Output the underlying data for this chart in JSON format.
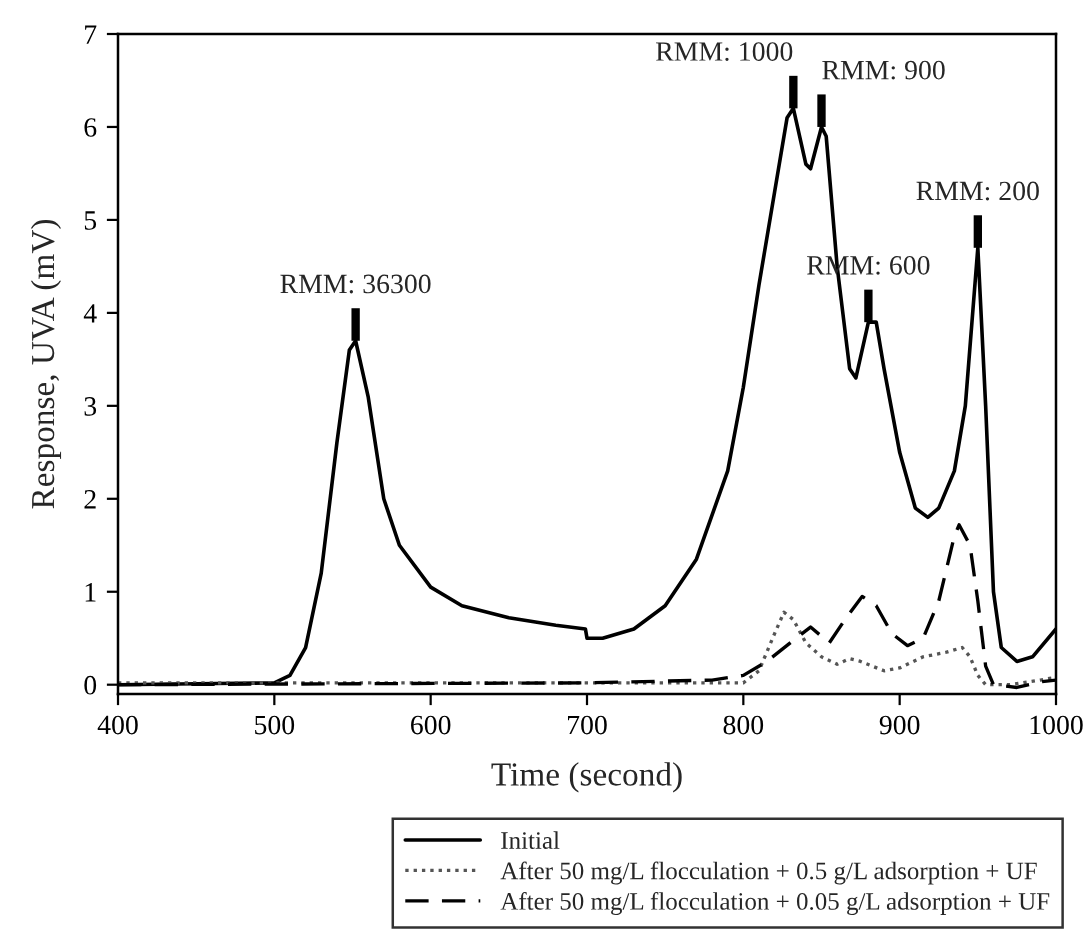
{
  "chart_data": {
    "type": "line",
    "xlabel": "Time (second)",
    "ylabel": "Response, UVA (mV)",
    "xlim": [
      400,
      1000
    ],
    "ylim": [
      -0.1,
      7
    ],
    "xticks": [
      400,
      500,
      600,
      700,
      800,
      900,
      1000
    ],
    "yticks": [
      0,
      1,
      2,
      3,
      4,
      5,
      6,
      7
    ],
    "grid": false,
    "legend": "bottom",
    "marker": "none",
    "series": [
      {
        "name": "Initial",
        "color": "#000000",
        "line_style": "solid",
        "x": [
          400,
          500,
          510,
          520,
          530,
          540,
          548,
          552,
          560,
          570,
          580,
          600,
          620,
          650,
          680,
          699,
          700,
          710,
          730,
          750,
          770,
          790,
          800,
          810,
          820,
          828,
          832,
          840,
          843,
          850,
          853,
          860,
          868,
          872,
          880,
          885,
          890,
          900,
          910,
          918,
          925,
          935,
          942,
          950,
          955,
          960,
          965,
          975,
          985,
          1000
        ],
        "values": [
          0,
          0.02,
          0.1,
          0.4,
          1.2,
          2.6,
          3.6,
          3.7,
          3.1,
          2.0,
          1.5,
          1.05,
          0.85,
          0.72,
          0.64,
          0.6,
          0.5,
          0.5,
          0.6,
          0.85,
          1.35,
          2.3,
          3.2,
          4.3,
          5.3,
          6.1,
          6.2,
          5.6,
          5.55,
          6.0,
          5.9,
          4.5,
          3.4,
          3.3,
          3.9,
          3.9,
          3.4,
          2.5,
          1.9,
          1.8,
          1.9,
          2.3,
          3.0,
          4.7,
          3.0,
          1.0,
          0.4,
          0.25,
          0.3,
          0.6
        ]
      },
      {
        "name": "After 50 mg/L flocculation + 0.5 g/L adsorption + UF",
        "color": "#555555",
        "line_style": "dotted",
        "x": [
          400,
          800,
          810,
          820,
          826,
          832,
          840,
          850,
          860,
          868,
          875,
          890,
          900,
          915,
          930,
          940,
          945,
          950,
          955,
          970,
          990,
          1000
        ],
        "values": [
          0.02,
          0.02,
          0.15,
          0.55,
          0.78,
          0.7,
          0.45,
          0.3,
          0.22,
          0.28,
          0.25,
          0.15,
          0.18,
          0.3,
          0.35,
          0.4,
          0.3,
          0.1,
          0.0,
          0.0,
          0.05,
          0.08
        ]
      },
      {
        "name": "After 50 mg/L flocculation + 0.05 g/L adsorption + UF",
        "color": "#000000",
        "line_style": "dashed",
        "x": [
          400,
          700,
          780,
          800,
          815,
          830,
          843,
          855,
          865,
          876,
          885,
          895,
          905,
          915,
          925,
          935,
          938,
          945,
          950,
          955,
          960,
          975,
          990,
          1000
        ],
        "values": [
          0,
          0.02,
          0.05,
          0.1,
          0.25,
          0.45,
          0.62,
          0.45,
          0.7,
          0.95,
          0.85,
          0.55,
          0.42,
          0.5,
          0.9,
          1.6,
          1.72,
          1.5,
          0.9,
          0.2,
          0.0,
          -0.03,
          0.03,
          0.05
        ]
      }
    ],
    "annotations": [
      {
        "text": "RMM: 36300",
        "x": 552,
        "y": 3.7
      },
      {
        "text": "RMM: 1000",
        "x": 832,
        "y": 6.2
      },
      {
        "text": "RMM: 900",
        "x": 850,
        "y": 6.0
      },
      {
        "text": "RMM: 600",
        "x": 880,
        "y": 3.9
      },
      {
        "text": "RMM: 200",
        "x": 950,
        "y": 4.7
      }
    ]
  }
}
